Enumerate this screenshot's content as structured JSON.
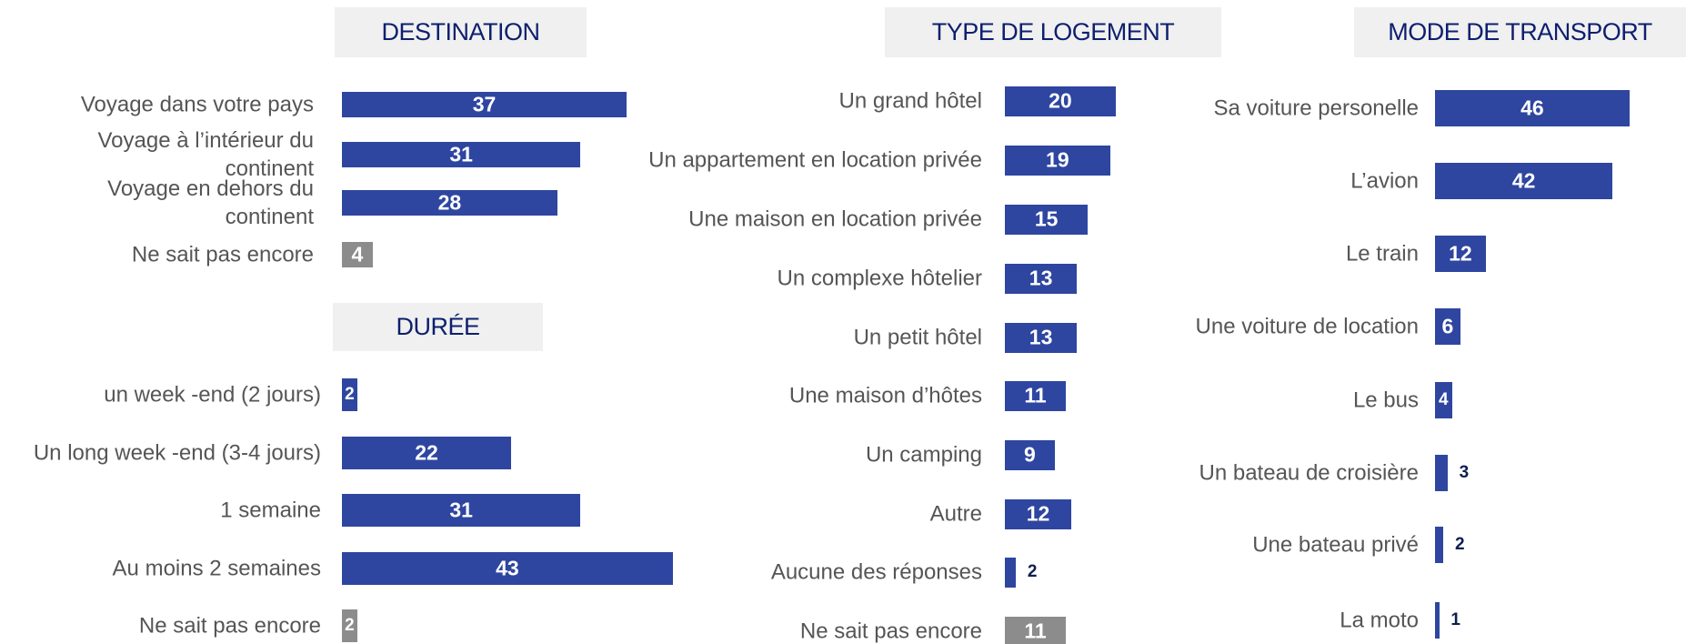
{
  "chart_data": [
    {
      "type": "bar",
      "title": "DESTINATION",
      "categories": [
        "Voyage dans votre pays",
        "Voyage à l’intérieur du continent",
        "Voyage en dehors du continent",
        "Ne sait pas encore"
      ],
      "values": [
        37,
        31,
        28,
        4
      ],
      "colors": [
        "#2e46a0",
        "#2e46a0",
        "#2e46a0",
        "#8c8c8c"
      ]
    },
    {
      "type": "bar",
      "title": "DURÉE",
      "categories": [
        "un week -end (2 jours)",
        "Un long week -end (3-4 jours)",
        "1 semaine",
        "Au moins 2 semaines",
        "Ne sait pas encore"
      ],
      "values": [
        2,
        22,
        31,
        43,
        2
      ],
      "colors": [
        "#2e46a0",
        "#2e46a0",
        "#2e46a0",
        "#2e46a0",
        "#8c8c8c"
      ]
    },
    {
      "type": "bar",
      "title": "TYPE DE LOGEMENT",
      "categories": [
        "Un grand hôtel",
        "Un appartement en location privée",
        "Une maison en location privée",
        "Un complexe hôtelier",
        "Un petit hôtel",
        "Une maison d’hôtes",
        "Un camping",
        "Autre",
        "Aucune des réponses",
        "Ne sait pas encore"
      ],
      "values": [
        20,
        19,
        15,
        13,
        13,
        11,
        9,
        12,
        2,
        11
      ],
      "colors": [
        "#2e46a0",
        "#2e46a0",
        "#2e46a0",
        "#2e46a0",
        "#2e46a0",
        "#2e46a0",
        "#2e46a0",
        "#2e46a0",
        "#2e46a0",
        "#8c8c8c"
      ]
    },
    {
      "type": "bar",
      "title": "MODE DE TRANSPORT",
      "categories": [
        "Sa voiture personelle",
        "L’avion",
        "Le train",
        "Une voiture de location",
        "Le bus",
        "Un bateau de croisière",
        "Une bateau privé",
        "La moto"
      ],
      "values": [
        46,
        42,
        12,
        6,
        4,
        3,
        2,
        1
      ],
      "colors": [
        "#2e46a0",
        "#2e46a0",
        "#2e46a0",
        "#2e46a0",
        "#2e46a0",
        "#2e46a0",
        "#2e46a0",
        "#2e46a0"
      ]
    }
  ]
}
